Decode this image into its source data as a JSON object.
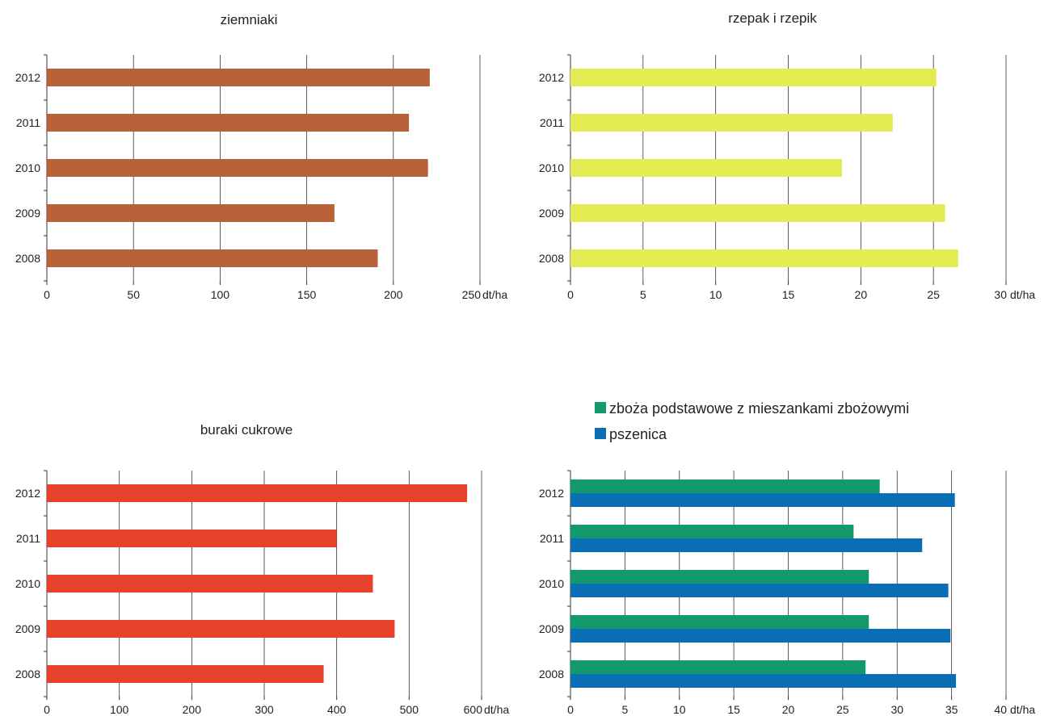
{
  "chart_data": [
    {
      "type": "bar",
      "orientation": "horizontal",
      "title": "ziemniaki",
      "categories": [
        "2012",
        "2011",
        "2010",
        "2009",
        "2008"
      ],
      "series": [
        {
          "values": [
            221,
            209,
            220,
            166,
            191
          ],
          "color": "#B9623A"
        }
      ],
      "xlim": [
        0,
        250
      ],
      "xticks": [
        0,
        50,
        100,
        150,
        200,
        250
      ],
      "xunit": "dt/ha",
      "grid": "vertical"
    },
    {
      "type": "bar",
      "orientation": "horizontal",
      "title": "rzepak i rzepik",
      "categories": [
        "2012",
        "2011",
        "2010",
        "2009",
        "2008"
      ],
      "series": [
        {
          "values": [
            25.2,
            22.2,
            18.7,
            25.8,
            26.7
          ],
          "color": "#E4EA52"
        }
      ],
      "xlim": [
        0,
        30
      ],
      "xticks": [
        0,
        5,
        10,
        15,
        20,
        25,
        30
      ],
      "xunit": "dt/ha",
      "grid": "vertical"
    },
    {
      "type": "bar",
      "orientation": "horizontal",
      "title": "buraki cukrowe",
      "categories": [
        "2012",
        "2011",
        "2010",
        "2009",
        "2008"
      ],
      "series": [
        {
          "values": [
            580,
            400,
            450,
            480,
            382
          ],
          "color": "#E8412C"
        }
      ],
      "xlim": [
        0,
        600
      ],
      "xticks": [
        0,
        100,
        200,
        300,
        400,
        500,
        600
      ],
      "xunit": "dt/ha",
      "grid": "vertical"
    },
    {
      "type": "bar",
      "orientation": "horizontal",
      "title": "",
      "categories": [
        "2012",
        "2011",
        "2010",
        "2009",
        "2008"
      ],
      "series": [
        {
          "name": "zboża podstawowe z mieszankami zbożowymi",
          "values": [
            28.4,
            26.0,
            27.4,
            27.4,
            27.1
          ],
          "color": "#12996E"
        },
        {
          "name": "pszenica",
          "values": [
            35.3,
            32.3,
            34.7,
            34.9,
            35.4
          ],
          "color": "#0A6EB4"
        }
      ],
      "xlim": [
        0,
        40
      ],
      "xticks": [
        0,
        5,
        10,
        15,
        20,
        25,
        30,
        35,
        40
      ],
      "xunit": "dt/ha",
      "grid": "vertical",
      "legend": "top"
    }
  ]
}
